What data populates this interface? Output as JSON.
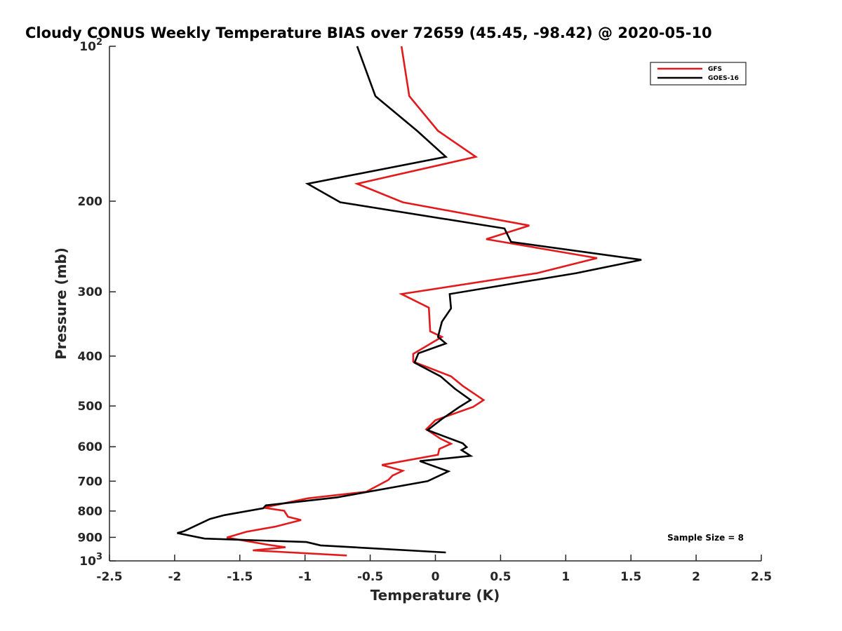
{
  "chart_data": {
    "type": "line",
    "title": "Cloudy CONUS Weekly Temperature BIAS over 72659 (45.45, -98.42) @ 2020-05-10",
    "xlabel": "Temperature (K)",
    "ylabel": "Pressure (mb)",
    "xlim": [
      -2.5,
      2.5
    ],
    "ylim": [
      100,
      1000
    ],
    "yscale": "log",
    "y_reversed": true,
    "x_ticks": [
      -2.5,
      -2,
      -1.5,
      -1,
      -0.5,
      0,
      0.5,
      1,
      1.5,
      2,
      2.5
    ],
    "x_tick_labels": [
      "-2.5",
      "-2",
      "-1.5",
      "-1",
      "-0.5",
      "0",
      "0.5",
      "1",
      "1.5",
      "2",
      "2.5"
    ],
    "y_ticks": [
      100,
      200,
      300,
      400,
      500,
      600,
      700,
      800,
      900,
      1000
    ],
    "y_tick_labels": [
      {
        "base": "10",
        "exp": "2"
      },
      {
        "base": "200",
        "exp": ""
      },
      {
        "base": "300",
        "exp": ""
      },
      {
        "base": "400",
        "exp": ""
      },
      {
        "base": "500",
        "exp": ""
      },
      {
        "base": "600",
        "exp": ""
      },
      {
        "base": "700",
        "exp": ""
      },
      {
        "base": "800",
        "exp": ""
      },
      {
        "base": "900",
        "exp": ""
      },
      {
        "base": "10",
        "exp": "3"
      }
    ],
    "grid": false,
    "legend_position": "top-right",
    "series": [
      {
        "name": "GFS",
        "color": "#e31a1c",
        "points": [
          [
            -0.26,
            100
          ],
          [
            -0.2,
            125
          ],
          [
            0.02,
            146
          ],
          [
            0.31,
            164
          ],
          [
            -0.6,
            185
          ],
          [
            -0.25,
            201
          ],
          [
            0.72,
            223
          ],
          [
            0.39,
            237
          ],
          [
            1.24,
            258
          ],
          [
            0.78,
            276
          ],
          [
            -0.26,
            303
          ],
          [
            -0.05,
            322
          ],
          [
            -0.04,
            358
          ],
          [
            0.05,
            367
          ],
          [
            -0.17,
            396
          ],
          [
            -0.17,
            410
          ],
          [
            0.12,
            438
          ],
          [
            0.21,
            457
          ],
          [
            0.37,
            487
          ],
          [
            0.29,
            502
          ],
          [
            0.0,
            533
          ],
          [
            -0.07,
            555
          ],
          [
            0.04,
            579
          ],
          [
            0.12,
            592
          ],
          [
            0.03,
            606
          ],
          [
            0.02,
            622
          ],
          [
            -0.41,
            651
          ],
          [
            -0.25,
            668
          ],
          [
            -0.33,
            683
          ],
          [
            -0.36,
            696
          ],
          [
            -0.53,
            734
          ],
          [
            -0.98,
            756
          ],
          [
            -1.32,
            788
          ],
          [
            -1.16,
            799
          ],
          [
            -1.13,
            821
          ],
          [
            -1.03,
            833
          ],
          [
            -1.23,
            858
          ],
          [
            -1.45,
            878
          ],
          [
            -1.6,
            901
          ],
          [
            -1.3,
            929
          ],
          [
            -1.15,
            941
          ],
          [
            -1.4,
            954
          ],
          [
            -0.68,
            976
          ]
        ]
      },
      {
        "name": "GOES-16",
        "color": "#000000",
        "points": [
          [
            -0.6,
            100
          ],
          [
            -0.46,
            125
          ],
          [
            -0.14,
            146
          ],
          [
            0.08,
            164
          ],
          [
            -0.98,
            185
          ],
          [
            -0.73,
            201
          ],
          [
            0.53,
            226
          ],
          [
            0.58,
            240
          ],
          [
            1.58,
            260
          ],
          [
            1.08,
            276
          ],
          [
            0.11,
            303
          ],
          [
            0.12,
            323
          ],
          [
            0.05,
            343
          ],
          [
            0.02,
            367
          ],
          [
            0.08,
            378
          ],
          [
            -0.13,
            395
          ],
          [
            -0.16,
            412
          ],
          [
            0.04,
            438
          ],
          [
            0.15,
            463
          ],
          [
            0.27,
            487
          ],
          [
            0.18,
            503
          ],
          [
            0.05,
            530
          ],
          [
            -0.06,
            557
          ],
          [
            0.21,
            591
          ],
          [
            0.24,
            601
          ],
          [
            0.2,
            609
          ],
          [
            0.27,
            625
          ],
          [
            -0.12,
            640
          ],
          [
            0.1,
            670
          ],
          [
            -0.06,
            700
          ],
          [
            -0.76,
            753
          ],
          [
            -1.3,
            780
          ],
          [
            -1.32,
            790
          ],
          [
            -1.62,
            815
          ],
          [
            -1.73,
            829
          ],
          [
            -1.93,
            876
          ],
          [
            -1.98,
            883
          ],
          [
            -1.77,
            905
          ],
          [
            -0.99,
            919
          ],
          [
            -0.88,
            933
          ],
          [
            0.08,
            963
          ]
        ]
      }
    ],
    "annotation": "Sample Size = 8"
  }
}
